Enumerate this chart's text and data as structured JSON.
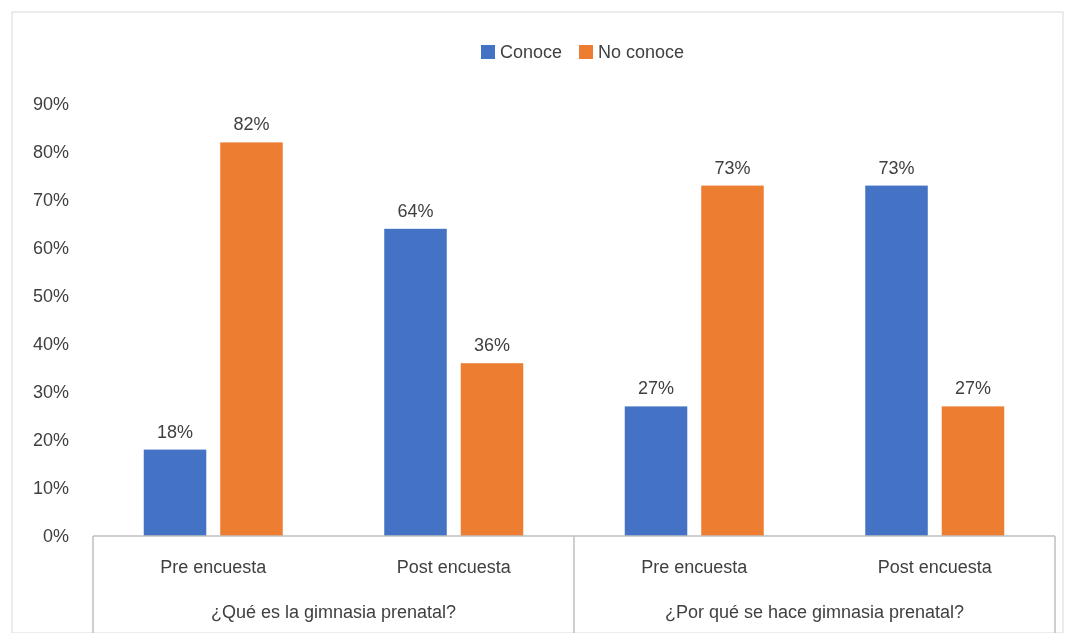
{
  "chart_data": {
    "type": "bar",
    "categories": [
      "Pre encuesta",
      "Post encuesta",
      "Pre encuesta",
      "Post encuesta"
    ],
    "series": [
      {
        "name": "Conoce",
        "color": "#4472c4",
        "values": [
          18,
          64,
          27,
          73
        ],
        "value_labels": [
          "18%",
          "64%",
          "27%",
          "73%"
        ]
      },
      {
        "name": "No conoce",
        "color": "#ed7d31",
        "values": [
          82,
          36,
          73,
          27
        ],
        "value_labels": [
          "82%",
          "36%",
          "73%",
          "27%"
        ]
      }
    ],
    "annotations": [
      "¿Qué es la gimnasia prenatal?",
      "¿Por qué se hace gimnasia prenatal?"
    ],
    "ylim": [
      0,
      90
    ],
    "yticks": [
      {
        "value": 0,
        "label": "0%"
      },
      {
        "value": 10,
        "label": "10%"
      },
      {
        "value": 20,
        "label": "20%"
      },
      {
        "value": 30,
        "label": "30%"
      },
      {
        "value": 40,
        "label": "40%"
      },
      {
        "value": 50,
        "label": "50%"
      },
      {
        "value": 60,
        "label": "60%"
      },
      {
        "value": 70,
        "label": "70%"
      },
      {
        "value": 80,
        "label": "80%"
      },
      {
        "value": 90,
        "label": "90%"
      }
    ],
    "grid": false,
    "legend": "top"
  }
}
